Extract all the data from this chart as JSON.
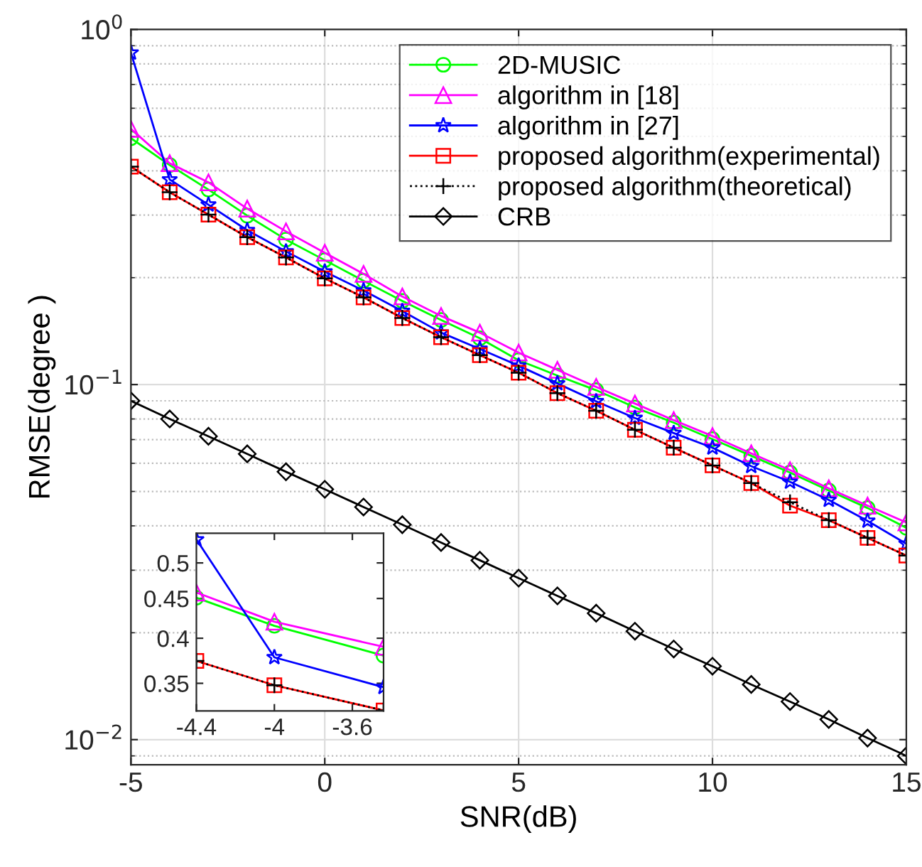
{
  "chart_data": [
    {
      "type": "line",
      "xlabel": "SNR(dB)",
      "ylabel": "RMSE(degree )",
      "log": "y",
      "grid": true,
      "legend": "top right",
      "x": [
        -5,
        -4,
        -3,
        -2,
        -1,
        0,
        1,
        2,
        3,
        4,
        5,
        6,
        7,
        8,
        9,
        10,
        11,
        12,
        13,
        14,
        15
      ],
      "xlim": [
        -5,
        15
      ],
      "xticks": [
        -5,
        0,
        5,
        10,
        15
      ],
      "ylim": [
        0.0085,
        1
      ],
      "yticks": [
        {
          "value": 0.01,
          "label": "10$^{−2}$"
        },
        {
          "value": 0.1,
          "label": "10$^{−1}$"
        },
        {
          "value": 1,
          "label": "10$^{0}$"
        }
      ],
      "series": [
        {
          "name": "2D-MUSIC",
          "color": "#00ff00",
          "marker": "circle",
          "line_style": "solid",
          "values": [
            0.494,
            0.415,
            0.354,
            0.299,
            0.256,
            0.224,
            0.196,
            0.172,
            0.152,
            0.135,
            0.117,
            0.106,
            0.0964,
            0.0862,
            0.0781,
            0.0702,
            0.063,
            0.0565,
            0.0503,
            0.0449,
            0.0395
          ]
        },
        {
          "name": "algorithm in [18]",
          "color": "#ff00ff",
          "marker": "triangle",
          "line_style": "solid",
          "values": [
            0.525,
            0.42,
            0.371,
            0.313,
            0.27,
            0.235,
            0.205,
            0.177,
            0.156,
            0.14,
            0.123,
            0.11,
            0.0985,
            0.0884,
            0.0794,
            0.0716,
            0.064,
            0.0574,
            0.051,
            0.0456,
            0.0409
          ]
        },
        {
          "name": "algorithm in [27]",
          "color": "#0000ff",
          "marker": "star",
          "line_style": "solid",
          "values": [
            0.86,
            0.378,
            0.321,
            0.272,
            0.237,
            0.208,
            0.184,
            0.161,
            0.14,
            0.126,
            0.113,
            0.1007,
            0.0897,
            0.0805,
            0.073,
            0.0664,
            0.0589,
            0.0532,
            0.0473,
            0.0413,
            0.0356
          ]
        },
        {
          "name": "proposed algorithm(experimental)",
          "color": "#ff0000",
          "marker": "square",
          "line_style": "solid",
          "values": [
            0.411,
            0.348,
            0.301,
            0.26,
            0.228,
            0.199,
            0.176,
            0.154,
            0.136,
            0.121,
            0.108,
            0.0946,
            0.0844,
            0.0746,
            0.0664,
            0.0592,
            0.0528,
            0.0456,
            0.0415,
            0.037,
            0.033
          ]
        },
        {
          "name": "proposed algorithm(theoretical)",
          "color": "#000000",
          "marker": "cross",
          "line_style": "dotted",
          "values": [
            0.411,
            0.348,
            0.301,
            0.26,
            0.228,
            0.199,
            0.176,
            0.154,
            0.136,
            0.121,
            0.108,
            0.0946,
            0.0844,
            0.0746,
            0.0664,
            0.0592,
            0.0528,
            0.0466,
            0.0415,
            0.037,
            0.033
          ]
        },
        {
          "name": "CRB",
          "color": "#000000",
          "marker": "diamond",
          "line_style": "solid",
          "values": [
            0.09,
            0.08,
            0.0715,
            0.0638,
            0.0568,
            0.0507,
            0.0452,
            0.0403,
            0.0359,
            0.032,
            0.0285,
            0.0254,
            0.0227,
            0.0202,
            0.018,
            0.0161,
            0.0143,
            0.0128,
            0.0114,
            0.0101,
            0.009
          ]
        }
      ]
    },
    {
      "type": "line",
      "log": "y",
      "grid": false,
      "x": [
        -4.4,
        -4,
        -3.44
      ],
      "xlim": [
        -4.4,
        -3.44
      ],
      "xticks": [
        -4.4,
        -4,
        -3.6
      ],
      "ylim": [
        0.3225,
        0.546
      ],
      "yticks": [
        0.35,
        0.4,
        0.45,
        0.5
      ],
      "series": [
        {
          "color": "#00ff00",
          "marker": "circle",
          "line_style": "solid",
          "values": [
            0.451,
            0.415,
            0.38
          ]
        },
        {
          "color": "#ff00ff",
          "marker": "triangle",
          "line_style": "solid",
          "values": [
            0.458,
            0.42,
            0.39
          ]
        },
        {
          "color": "#0000ff",
          "marker": "star",
          "line_style": "solid",
          "values": [
            0.536,
            0.378,
            0.346
          ]
        },
        {
          "color": "#ff0000",
          "marker": "square",
          "line_style": "solid",
          "values": [
            0.374,
            0.348,
            0.323
          ]
        },
        {
          "color": "#000000",
          "marker": "cross",
          "line_style": "dotted",
          "values": [
            0.374,
            0.348,
            0.323
          ]
        }
      ]
    }
  ]
}
